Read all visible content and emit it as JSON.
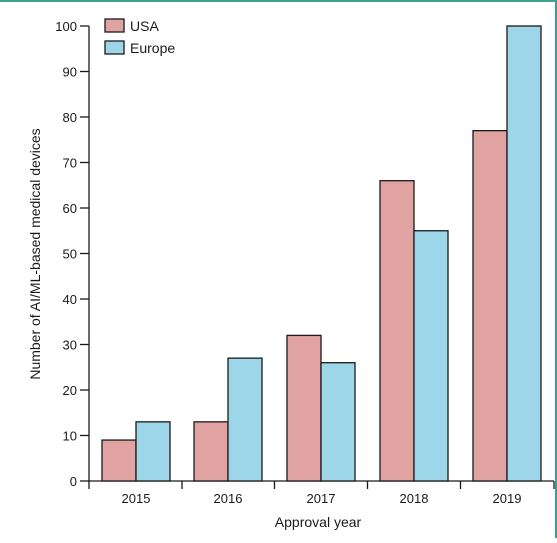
{
  "chart_data": {
    "type": "bar",
    "categories": [
      "2015",
      "2016",
      "2017",
      "2018",
      "2019"
    ],
    "series": [
      {
        "name": "USA",
        "values": [
          9,
          13,
          32,
          66,
          77
        ]
      },
      {
        "name": "Europe",
        "values": [
          13,
          27,
          26,
          55,
          100
        ]
      }
    ],
    "xlabel": "Approval year",
    "ylabel": "Number of AI/ML-based medical devices",
    "ylim": [
      0,
      100
    ],
    "yticks": [
      0,
      10,
      20,
      30,
      40,
      50,
      60,
      70,
      80,
      90,
      100
    ],
    "grid": false,
    "legend_position": "top-left"
  },
  "colors": {
    "USA": "#e0a3a1",
    "Europe": "#9dd6e8",
    "outline": "#1a1a1a",
    "frame": "#3f9e8e"
  }
}
